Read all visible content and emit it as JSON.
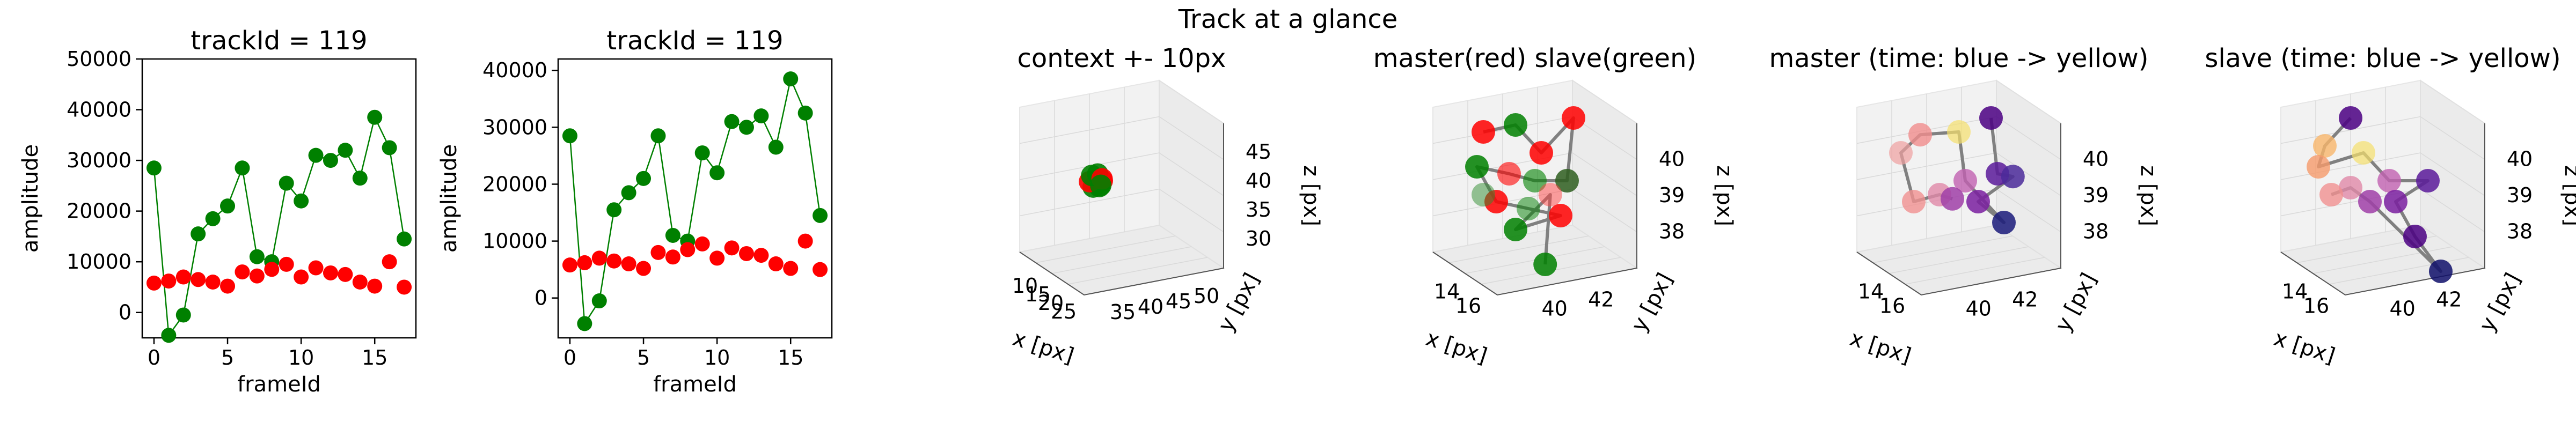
{
  "figure_title": "Track at a glance",
  "colors": {
    "master": "#ff0000",
    "slave": "#008000",
    "path": "#808080"
  },
  "chart_data": [
    {
      "type": "line",
      "title": "trackId = 119",
      "xlabel": "frameId",
      "ylabel": "amplitude",
      "xlim": [
        -0.8,
        17.8
      ],
      "ylim": [
        -5000,
        50000
      ],
      "xticks": [
        0,
        5,
        10,
        15
      ],
      "yticks": [
        0,
        10000,
        20000,
        30000,
        40000,
        50000
      ],
      "x": [
        0,
        1,
        2,
        3,
        4,
        5,
        6,
        7,
        8,
        9,
        10,
        11,
        12,
        13,
        14,
        15,
        16,
        17
      ],
      "series": [
        {
          "color": "#008000",
          "marker": "o",
          "lines": true,
          "values": [
            28500,
            -4500,
            -500,
            15500,
            18500,
            21000,
            28500,
            11000,
            10000,
            25500,
            22000,
            31000,
            30000,
            32000,
            26500,
            38500,
            32500,
            14500
          ]
        },
        {
          "color": "#ff0000",
          "marker": "o",
          "lines": false,
          "values": [
            5800,
            6200,
            7000,
            6500,
            6000,
            5200,
            8000,
            7200,
            8500,
            9500,
            7000,
            8800,
            7800,
            7500,
            6000,
            5200,
            10000,
            5000
          ]
        }
      ]
    },
    {
      "type": "line",
      "title": "trackId = 119",
      "xlabel": "frameId",
      "ylabel": "amplitude",
      "xlim": [
        -0.8,
        17.8
      ],
      "ylim": [
        -7000,
        42000
      ],
      "xticks": [
        0,
        5,
        10,
        15
      ],
      "yticks": [
        0,
        10000,
        20000,
        30000,
        40000
      ],
      "x": [
        0,
        1,
        2,
        3,
        4,
        5,
        6,
        7,
        8,
        9,
        10,
        11,
        12,
        13,
        14,
        15,
        16,
        17
      ],
      "series": [
        {
          "color": "#008000",
          "marker": "o",
          "lines": true,
          "values": [
            28500,
            -4500,
            -500,
            15500,
            18500,
            21000,
            28500,
            11000,
            10000,
            25500,
            22000,
            31000,
            30000,
            32000,
            26500,
            38500,
            32500,
            14500
          ]
        },
        {
          "color": "#ff0000",
          "marker": "o",
          "lines": false,
          "values": [
            5800,
            6200,
            7000,
            6500,
            6000,
            5200,
            8000,
            7200,
            8500,
            9500,
            7000,
            8800,
            7800,
            7500,
            6000,
            5200,
            10000,
            5000
          ]
        }
      ]
    },
    {
      "type": "scatter",
      "title": "context +- 10px",
      "xlabel": "x [px]",
      "ylabel": "y [px]",
      "zlabel": "z [px]",
      "xticks": [
        "10",
        "15",
        "20",
        "25"
      ],
      "yticks": [
        "35",
        "40",
        "45",
        "50"
      ],
      "zticks": [
        "30",
        "35",
        "40",
        "45"
      ],
      "marker_color": "#008000"
    },
    {
      "type": "scatter",
      "title": "master(red) slave(green)",
      "xlabel": "x [px]",
      "ylabel": "y [px]",
      "zlabel": "z [px]",
      "xticks": [
        "14",
        "16"
      ],
      "yticks": [
        "40",
        "42"
      ],
      "zticks": [
        "38",
        "39",
        "40"
      ],
      "marker_color": "#008000"
    },
    {
      "type": "scatter",
      "title": "master (time: blue -> yellow)",
      "xlabel": "x [px]",
      "ylabel": "y [px]",
      "zlabel": "z [px]",
      "xticks": [
        "14",
        "16"
      ],
      "yticks": [
        "40",
        "42"
      ],
      "zticks": [
        "38",
        "39",
        "40"
      ],
      "marker_color": "#6a0dad"
    },
    {
      "type": "scatter",
      "title": "slave (time: blue -> yellow)",
      "xlabel": "x [px]",
      "ylabel": "y [px]",
      "zlabel": "z [px]",
      "xticks": [
        "14",
        "16"
      ],
      "yticks": [
        "40",
        "42"
      ],
      "zticks": [
        "38",
        "39",
        "40"
      ],
      "marker_color": "#6a0dad"
    }
  ]
}
